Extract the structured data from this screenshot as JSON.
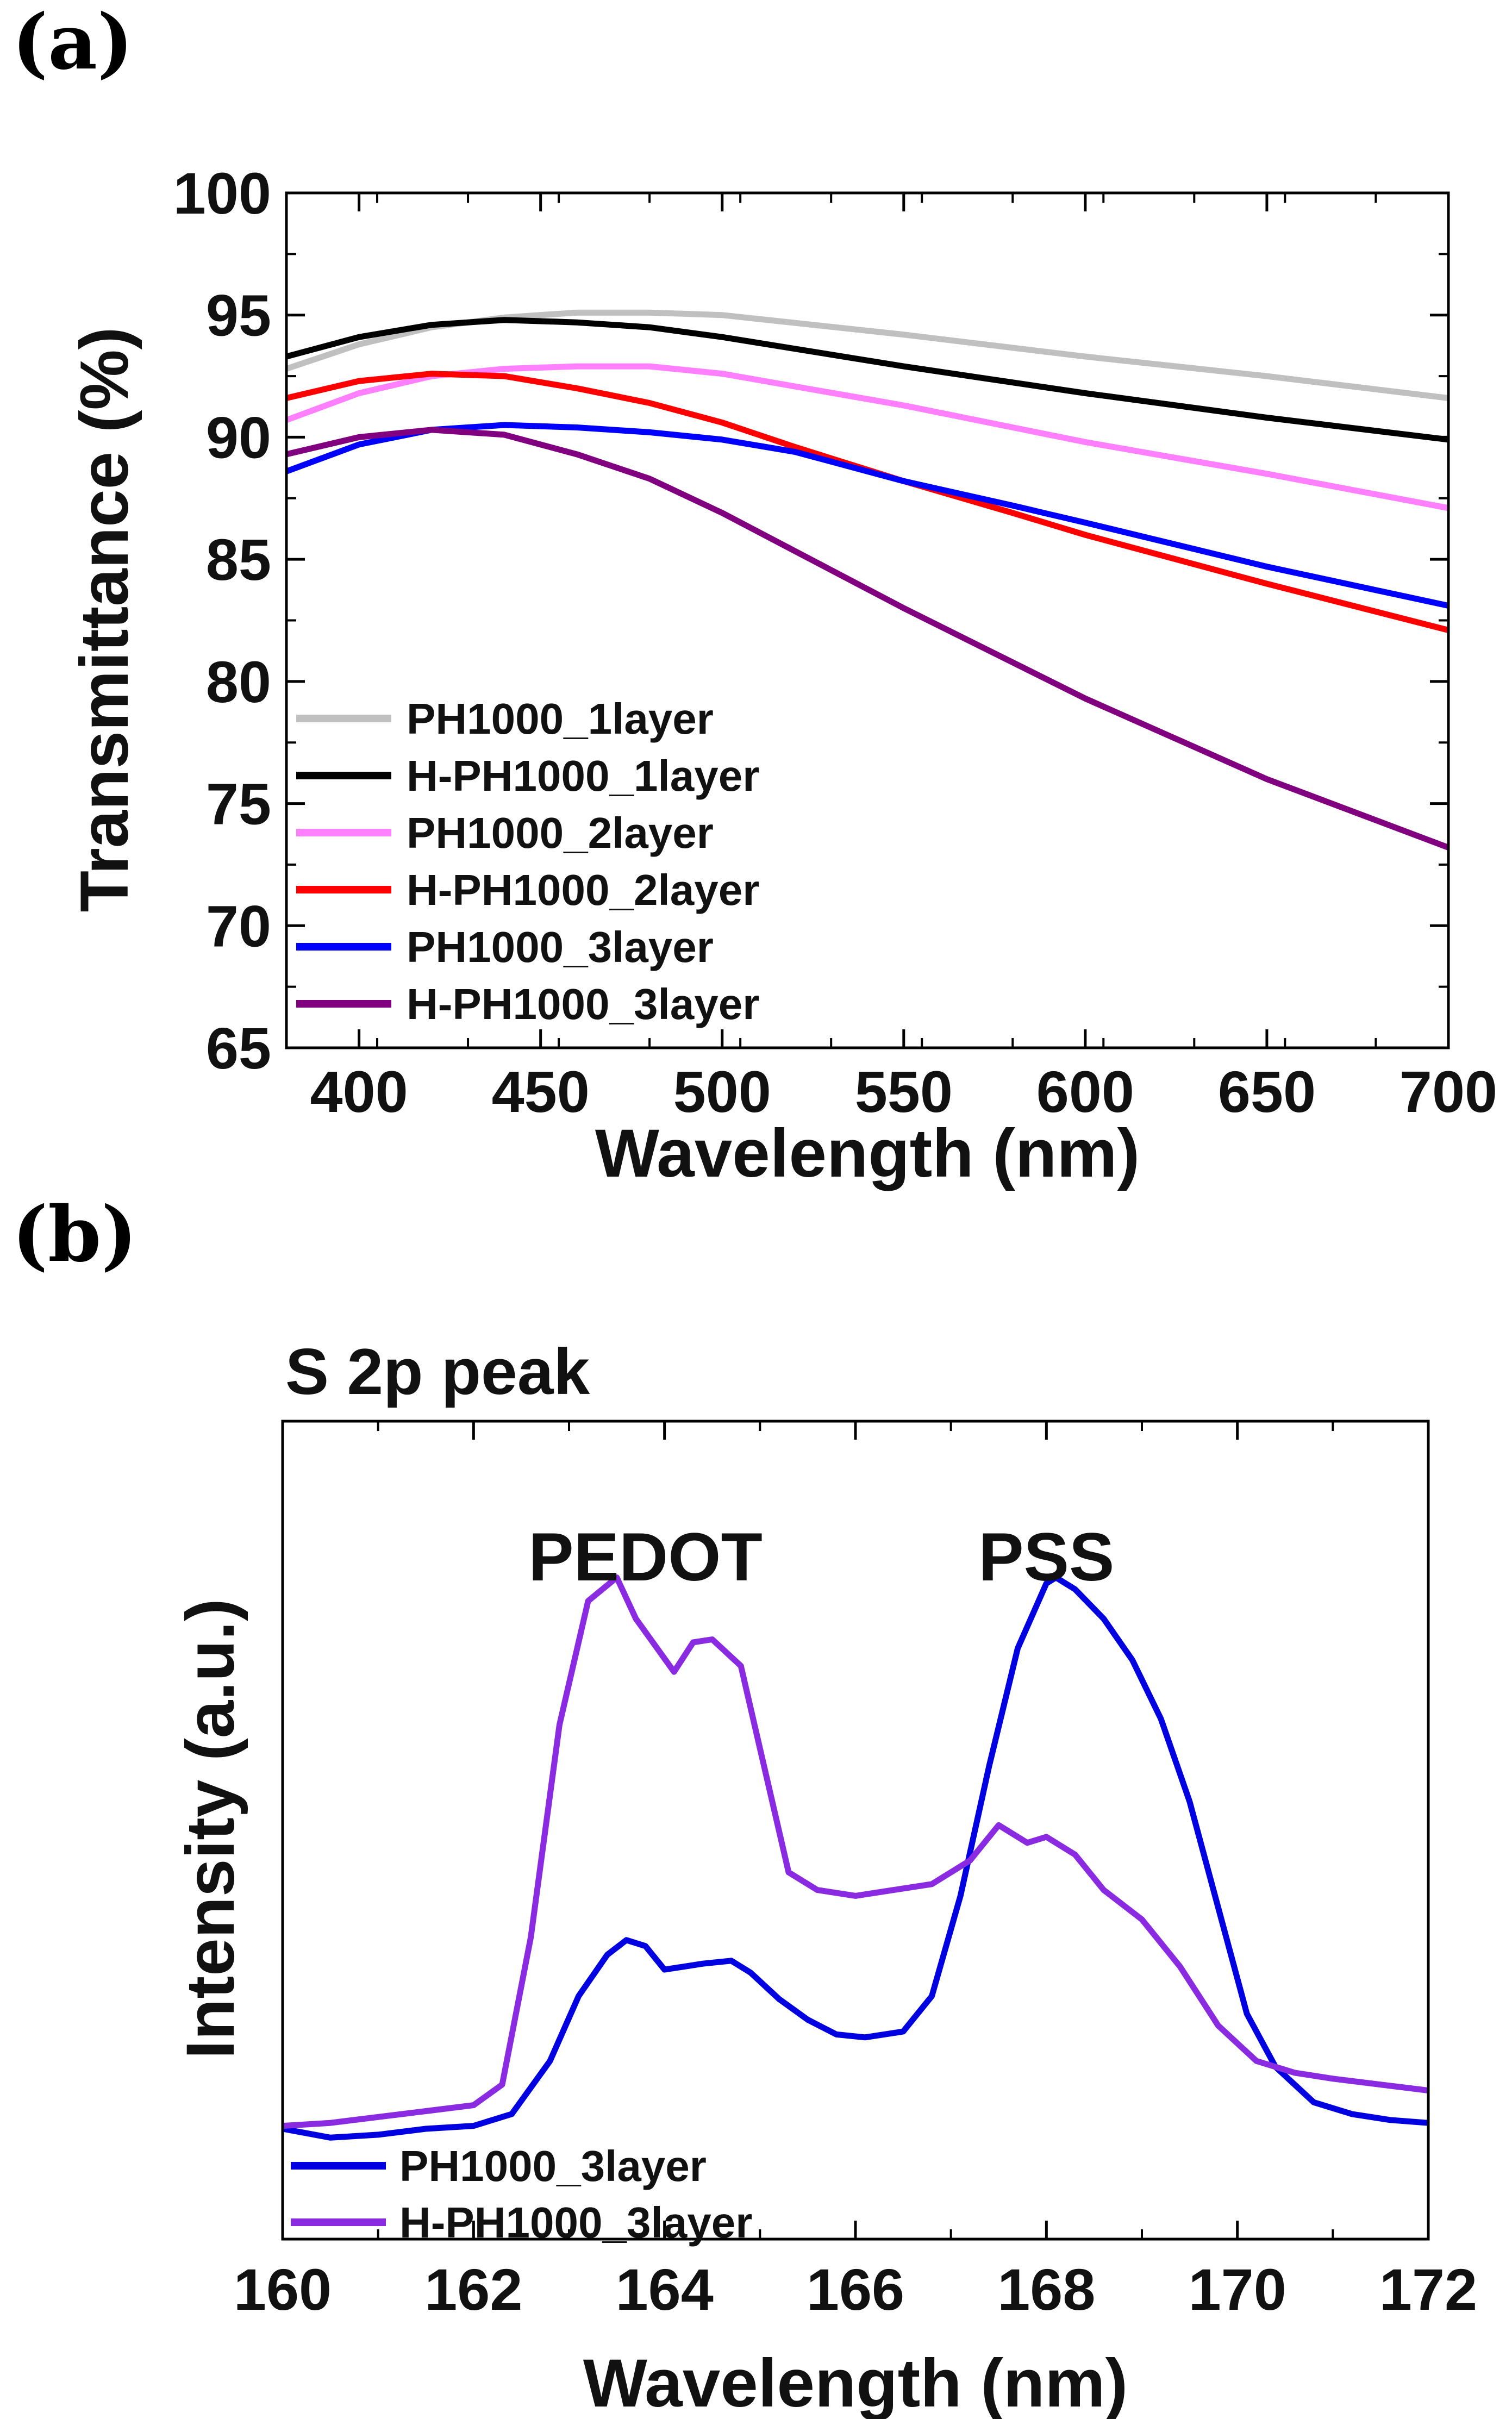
{
  "panels": {
    "a": {
      "label": "(a)"
    },
    "b": {
      "label": "(b)"
    }
  },
  "chart_data": [
    {
      "type": "line",
      "panel": "a",
      "title": "",
      "xlabel": "Wavelength (nm)",
      "ylabel": "Transmittance (%)",
      "xlim": [
        380,
        700
      ],
      "ylim": [
        65,
        100
      ],
      "xticks": [
        400,
        450,
        500,
        550,
        600,
        650,
        700
      ],
      "yticks": [
        65,
        70,
        75,
        80,
        85,
        90,
        95,
        100
      ],
      "legend_position": "bottom-left",
      "series": [
        {
          "name": "PH1000_1layer",
          "color": "#c0c0c0",
          "x": [
            380,
            400,
            420,
            440,
            460,
            480,
            500,
            550,
            600,
            650,
            700
          ],
          "y": [
            92.8,
            93.8,
            94.5,
            94.9,
            95.1,
            95.1,
            95.0,
            94.2,
            93.3,
            92.5,
            91.6
          ]
        },
        {
          "name": "H-PH1000_1layer",
          "color": "#000000",
          "x": [
            380,
            400,
            420,
            440,
            460,
            480,
            500,
            550,
            600,
            650,
            700
          ],
          "y": [
            93.3,
            94.1,
            94.6,
            94.8,
            94.7,
            94.5,
            94.1,
            92.9,
            91.8,
            90.8,
            89.9
          ]
        },
        {
          "name": "PH1000_2layer",
          "color": "#ff80ff",
          "x": [
            380,
            400,
            420,
            440,
            460,
            480,
            500,
            550,
            600,
            650,
            700
          ],
          "y": [
            90.7,
            91.8,
            92.5,
            92.8,
            92.9,
            92.9,
            92.6,
            91.3,
            89.8,
            88.5,
            87.1
          ]
        },
        {
          "name": "H-PH1000_2layer",
          "color": "#ff0000",
          "x": [
            380,
            400,
            420,
            440,
            460,
            480,
            500,
            520,
            550,
            580,
            600,
            650,
            700
          ],
          "y": [
            91.6,
            92.3,
            92.6,
            92.5,
            92.0,
            91.4,
            90.6,
            89.6,
            88.2,
            86.9,
            86.0,
            84.0,
            82.1
          ]
        },
        {
          "name": "PH1000_3layer",
          "color": "#0000ff",
          "x": [
            380,
            400,
            420,
            440,
            460,
            480,
            500,
            520,
            550,
            580,
            600,
            650,
            700
          ],
          "y": [
            88.6,
            89.7,
            90.3,
            90.5,
            90.4,
            90.2,
            89.9,
            89.4,
            88.2,
            87.2,
            86.5,
            84.7,
            83.1
          ]
        },
        {
          "name": "H-PH1000_3layer",
          "color": "#800080",
          "x": [
            380,
            400,
            420,
            440,
            460,
            480,
            500,
            550,
            600,
            650,
            700
          ],
          "y": [
            89.3,
            90.0,
            90.3,
            90.1,
            89.3,
            88.3,
            86.9,
            83.0,
            79.3,
            76.0,
            73.2
          ]
        }
      ]
    },
    {
      "type": "line",
      "panel": "b",
      "title": "S 2p peak",
      "xlabel": "Wavelength (nm)",
      "ylabel": "Intensity (a.u.)",
      "xlim": [
        160,
        172
      ],
      "ylim": [
        0,
        1
      ],
      "xticks": [
        160,
        162,
        164,
        166,
        168,
        170,
        172
      ],
      "legend_position": "bottom-left",
      "annotations": [
        {
          "text": "PEDOT",
          "x": 163.8,
          "y": 0.965
        },
        {
          "text": "PSS",
          "x": 168.0,
          "y": 0.965
        }
      ],
      "series": [
        {
          "name": "PH1000_3layer",
          "color": "#0000e0",
          "x": [
            160,
            160.5,
            161,
            161.5,
            162,
            162.4,
            162.8,
            163.1,
            163.4,
            163.6,
            163.8,
            164.0,
            164.2,
            164.4,
            164.7,
            164.9,
            165.2,
            165.5,
            165.8,
            166.1,
            166.5,
            166.8,
            167.1,
            167.4,
            167.7,
            168.0,
            168.1,
            168.3,
            168.6,
            168.9,
            169.2,
            169.5,
            169.8,
            170.1,
            170.4,
            170.8,
            171.2,
            171.6,
            172
          ],
          "y": [
            0.035,
            0.02,
            0.025,
            0.035,
            0.04,
            0.06,
            0.15,
            0.26,
            0.33,
            0.355,
            0.345,
            0.305,
            0.31,
            0.315,
            0.32,
            0.3,
            0.255,
            0.22,
            0.195,
            0.19,
            0.2,
            0.26,
            0.43,
            0.65,
            0.85,
            0.96,
            0.97,
            0.95,
            0.9,
            0.83,
            0.73,
            0.59,
            0.41,
            0.23,
            0.14,
            0.08,
            0.06,
            0.05,
            0.045
          ]
        },
        {
          "name": "H-PH1000_3layer",
          "color": "#8a2be2",
          "x": [
            160,
            160.5,
            161,
            161.5,
            162,
            162.3,
            162.6,
            162.9,
            163.2,
            163.5,
            163.7,
            163.9,
            164.1,
            164.3,
            164.5,
            164.8,
            165.0,
            165.3,
            165.6,
            166.0,
            166.4,
            166.8,
            167.2,
            167.5,
            167.8,
            168.0,
            168.3,
            168.6,
            169.0,
            169.4,
            169.8,
            170.2,
            170.6,
            171.0,
            171.5,
            172
          ],
          "y": [
            0.04,
            0.045,
            0.055,
            0.065,
            0.075,
            0.11,
            0.36,
            0.72,
            0.93,
            0.97,
            0.9,
            0.855,
            0.81,
            0.86,
            0.865,
            0.82,
            0.68,
            0.47,
            0.44,
            0.43,
            0.44,
            0.45,
            0.49,
            0.55,
            0.52,
            0.53,
            0.5,
            0.44,
            0.39,
            0.31,
            0.21,
            0.15,
            0.13,
            0.12,
            0.11,
            0.1
          ]
        }
      ]
    }
  ]
}
